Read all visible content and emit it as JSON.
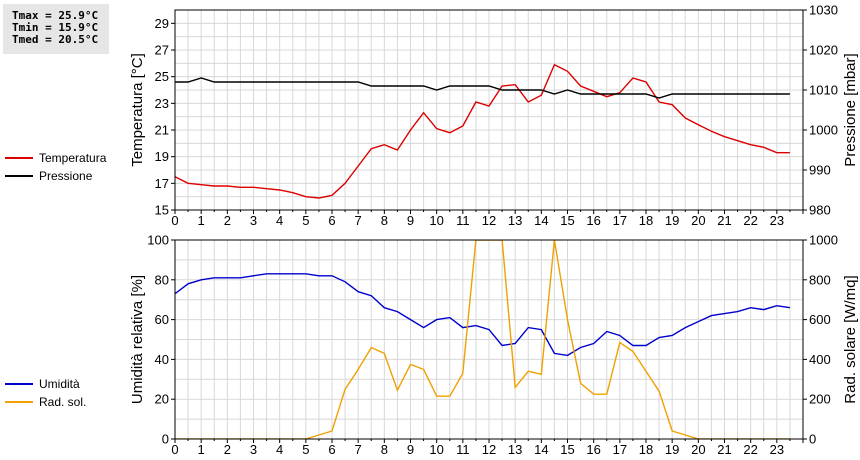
{
  "stats": {
    "tmax": "Tmax = 25.9°C",
    "tmin": "Tmin = 15.9°C",
    "tmed": "Tmed = 20.5°C"
  },
  "chart_data": [
    {
      "type": "line",
      "x_ticks": [
        "0",
        "1",
        "2",
        "3",
        "4",
        "5",
        "6",
        "7",
        "8",
        "9",
        "10",
        "11",
        "12",
        "13",
        "14",
        "15",
        "16",
        "17",
        "18",
        "19",
        "20",
        "21",
        "22",
        "23"
      ],
      "xlim": [
        0,
        24
      ],
      "ylabel_left": "Temperatura [°C]",
      "ylabel_right": "Pressione [mbar]",
      "ylim_left": [
        15,
        30
      ],
      "ylim_right": [
        980,
        1030
      ],
      "yticks_left": [
        "15",
        "17",
        "19",
        "21",
        "23",
        "25",
        "27",
        "29"
      ],
      "yticks_right": [
        "980",
        "990",
        "1000",
        "1010",
        "1020",
        "1030"
      ],
      "grid": true,
      "series": [
        {
          "name": "Temperatura",
          "color": "#dd0000",
          "axis": "left",
          "x": [
            0,
            0.5,
            1,
            1.5,
            2,
            2.5,
            3,
            3.5,
            4,
            4.5,
            5,
            5.5,
            6,
            6.5,
            7,
            7.5,
            8,
            8.5,
            9,
            9.5,
            10,
            10.5,
            11,
            11.5,
            12,
            12.5,
            13,
            13.5,
            14,
            14.5,
            15,
            15.5,
            16,
            16.5,
            17,
            17.5,
            18,
            18.5,
            19,
            19.5,
            20,
            20.5,
            21,
            21.5,
            22,
            22.5,
            23,
            23.5
          ],
          "values": [
            17.5,
            17.0,
            16.9,
            16.8,
            16.8,
            16.7,
            16.7,
            16.6,
            16.5,
            16.3,
            16.0,
            15.9,
            16.1,
            17.0,
            18.3,
            19.6,
            19.9,
            19.5,
            21.0,
            22.3,
            21.1,
            20.8,
            21.3,
            23.1,
            22.8,
            24.3,
            24.4,
            23.1,
            23.6,
            25.9,
            25.4,
            24.3,
            23.9,
            23.5,
            23.8,
            24.9,
            24.6,
            23.1,
            22.9,
            21.9,
            21.4,
            20.9,
            20.5,
            20.2,
            19.9,
            19.7,
            19.3,
            19.3
          ]
        },
        {
          "name": "Pressione",
          "color": "#000000",
          "axis": "right",
          "x": [
            0,
            0.5,
            1,
            1.5,
            2,
            2.5,
            3,
            3.5,
            4,
            4.5,
            5,
            5.5,
            6,
            6.5,
            7,
            7.5,
            8,
            8.5,
            9,
            9.5,
            10,
            10.5,
            11,
            11.5,
            12,
            12.5,
            13,
            13.5,
            14,
            14.5,
            15,
            15.5,
            16,
            16.5,
            17,
            17.5,
            18,
            18.5,
            19,
            19.5,
            20,
            20.5,
            21,
            21.5,
            22,
            22.5,
            23,
            23.5
          ],
          "values": [
            1012,
            1012,
            1013,
            1012,
            1012,
            1012,
            1012,
            1012,
            1012,
            1012,
            1012,
            1012,
            1012,
            1012,
            1012,
            1011,
            1011,
            1011,
            1011,
            1011,
            1010,
            1011,
            1011,
            1011,
            1011,
            1010,
            1010,
            1010,
            1010,
            1009,
            1010,
            1009,
            1009,
            1009,
            1009,
            1009,
            1009,
            1008,
            1009,
            1009,
            1009,
            1009,
            1009,
            1009,
            1009,
            1009,
            1009,
            1009
          ]
        }
      ]
    },
    {
      "type": "line",
      "x_ticks": [
        "0",
        "1",
        "2",
        "3",
        "4",
        "5",
        "6",
        "7",
        "8",
        "9",
        "10",
        "11",
        "12",
        "13",
        "14",
        "15",
        "16",
        "17",
        "18",
        "19",
        "20",
        "21",
        "22",
        "23"
      ],
      "xlim": [
        0,
        24
      ],
      "ylabel_left": "Umidità relativa [%]",
      "ylabel_right": "Rad. solare [W/mq]",
      "ylim_left": [
        0,
        100
      ],
      "ylim_right": [
        0,
        1000
      ],
      "yticks_left": [
        "0",
        "20",
        "40",
        "60",
        "80",
        "100"
      ],
      "yticks_right": [
        "0",
        "200",
        "400",
        "600",
        "800",
        "1000"
      ],
      "grid": true,
      "series": [
        {
          "name": "Umidità",
          "color": "#0000cc",
          "axis": "left",
          "x": [
            0,
            0.5,
            1,
            1.5,
            2,
            2.5,
            3,
            3.5,
            4,
            4.5,
            5,
            5.5,
            6,
            6.5,
            7,
            7.5,
            8,
            8.5,
            9,
            9.5,
            10,
            10.5,
            11,
            11.5,
            12,
            12.5,
            13,
            13.5,
            14,
            14.5,
            15,
            15.5,
            16,
            16.5,
            17,
            17.5,
            18,
            18.5,
            19,
            19.5,
            20,
            20.5,
            21,
            21.5,
            22,
            22.5,
            23,
            23.5
          ],
          "values": [
            73,
            78,
            80,
            81,
            81,
            81,
            82,
            83,
            83,
            83,
            83,
            82,
            82,
            79,
            74,
            72,
            66,
            64,
            60,
            56,
            60,
            61,
            56,
            57,
            55,
            47,
            48,
            56,
            55,
            43,
            42,
            46,
            48,
            54,
            52,
            47,
            47,
            51,
            52,
            56,
            59,
            62,
            63,
            64,
            66,
            65,
            67,
            66
          ]
        },
        {
          "name": "Rad. sol.",
          "color": "#f0a000",
          "axis": "right",
          "x": [
            0,
            0.5,
            1,
            1.5,
            2,
            2.5,
            3,
            3.5,
            4,
            4.5,
            5,
            5.5,
            6,
            6.5,
            7,
            7.5,
            8,
            8.5,
            9,
            9.5,
            10,
            10.5,
            11,
            11.5,
            12,
            12.5,
            13,
            13.5,
            14,
            14.5,
            15,
            15.5,
            16,
            16.5,
            17,
            17.5,
            18,
            18.5,
            19,
            19.5,
            20,
            20.5,
            21,
            21.5,
            22,
            22.5,
            23,
            23.5
          ],
          "values": [
            0,
            0,
            0,
            0,
            0,
            0,
            0,
            0,
            0,
            0,
            0,
            20,
            40,
            250,
            350,
            460,
            430,
            245,
            375,
            350,
            215,
            215,
            330,
            1000,
            1000,
            1000,
            260,
            340,
            325,
            1000,
            600,
            280,
            225,
            225,
            485,
            440,
            340,
            240,
            40,
            20,
            0,
            0,
            0,
            0,
            0,
            0,
            0,
            0
          ]
        }
      ]
    }
  ]
}
